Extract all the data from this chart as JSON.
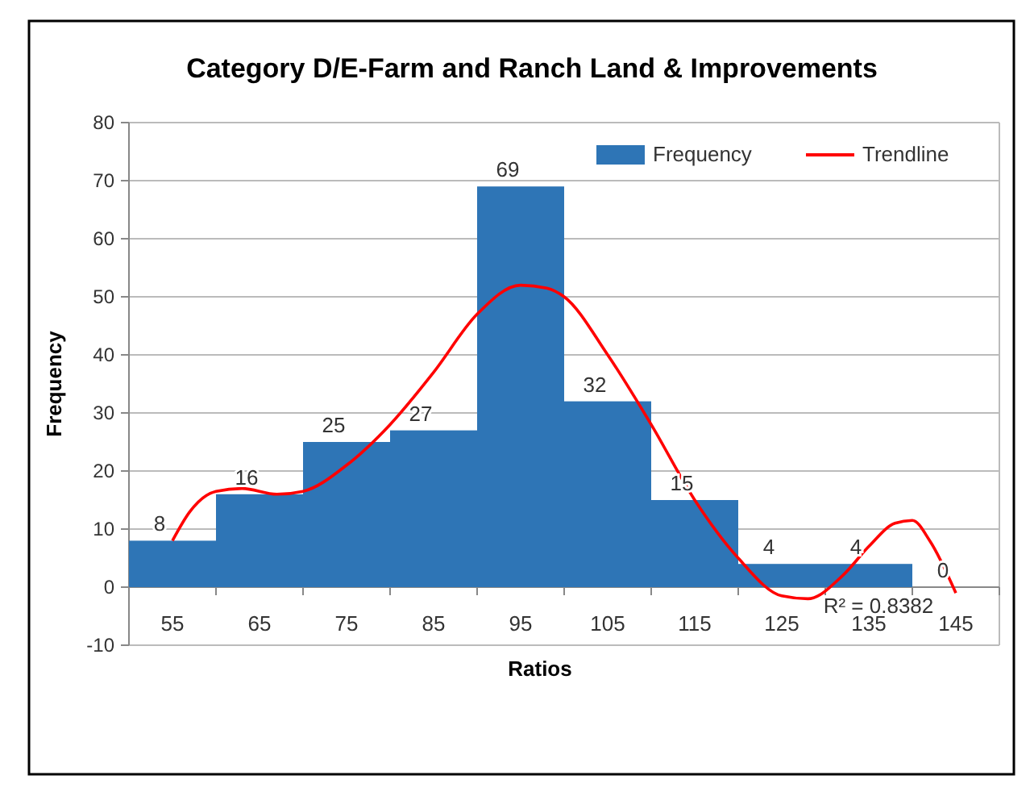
{
  "chart_data": {
    "type": "histogram",
    "title": "Category D/E-Farm and Ranch Land & Improvements",
    "xlabel": "Ratios",
    "ylabel": "Frequency",
    "bins": [
      50,
      60,
      70,
      80,
      90,
      100,
      110,
      120,
      130,
      140,
      150
    ],
    "xlim": [
      50,
      150
    ],
    "xticks": [
      55,
      65,
      75,
      85,
      95,
      105,
      115,
      125,
      135,
      145
    ],
    "ylim": [
      -10,
      80
    ],
    "yticks": [
      -10,
      0,
      10,
      20,
      30,
      40,
      50,
      60,
      70,
      80
    ],
    "series": [
      {
        "name": "Frequency",
        "color": "#2e75b6",
        "values": [
          8,
          16,
          25,
          27,
          69,
          32,
          15,
          4,
          4,
          0
        ],
        "value_labels": [
          "8",
          "16",
          "25",
          "27",
          "69",
          "32",
          "15",
          "4",
          "4",
          "0"
        ]
      },
      {
        "name": "Trendline",
        "type": "line",
        "color": "#ff0000",
        "x": [
          55,
          57,
          60,
          63,
          67,
          70,
          75,
          80,
          85,
          90,
          95,
          98,
          100,
          105,
          110,
          115,
          120,
          125,
          128,
          132,
          135,
          138,
          140,
          142,
          145
        ],
        "values": [
          8,
          13,
          16.5,
          17,
          16,
          16.5,
          21,
          28,
          37,
          47,
          52,
          51.5,
          50,
          40,
          28,
          15,
          5,
          -1.5,
          -2,
          2,
          7,
          11,
          11.5,
          8,
          -1
        ]
      }
    ],
    "grid": "y",
    "legend": "top right",
    "annotations": [
      "R² = 0.8382"
    ]
  }
}
